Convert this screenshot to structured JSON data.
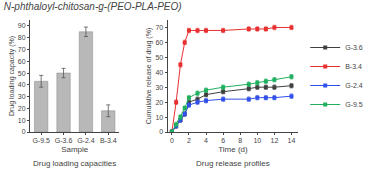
{
  "title": "N-phthaloyl-chitosan-g-(PEO-PLA-PEO)",
  "chart_data": [
    {
      "type": "bar",
      "title": "Drug loading capacities",
      "xlabel": "Sample",
      "ylabel": "Drug loading capacity (%)",
      "categories": [
        "G-9.5",
        "G-3.6",
        "G-2.4",
        "B-3.4"
      ],
      "values": [
        43,
        50,
        85,
        18
      ],
      "errors": [
        5,
        4,
        4,
        5
      ],
      "color": "#b8b8b8",
      "ylim": [
        0,
        95
      ],
      "yticks": [
        0,
        10,
        20,
        30,
        40,
        50,
        60,
        70,
        80,
        90
      ],
      "grid": false
    },
    {
      "type": "line",
      "title": "Drug release profiles",
      "xlabel": "Time (d)",
      "ylabel": "Cumulative release of drug (%)",
      "x": [
        0,
        0.5,
        1,
        1.5,
        2,
        3,
        4,
        6,
        9,
        10,
        11,
        12,
        14
      ],
      "series": [
        {
          "name": "G-3.6",
          "color": "#404040",
          "marker": "square",
          "values": [
            0,
            4,
            8,
            12,
            20,
            22,
            25,
            27,
            29,
            30,
            30,
            30,
            31
          ],
          "errors": [
            1.5,
            1.5,
            1.5,
            1.5,
            1.5,
            1.5,
            1.5,
            1.5,
            1.5,
            1.5,
            1.5,
            1.5,
            1.5
          ]
        },
        {
          "name": "B-3.4",
          "color": "#e83030",
          "marker": "square",
          "values": [
            0,
            20,
            45,
            60,
            68,
            68,
            68,
            68,
            69,
            69,
            69,
            70,
            70
          ],
          "errors": [
            1.5,
            1.5,
            1.5,
            1.5,
            1.5,
            1.5,
            1.5,
            1.5,
            1.5,
            1.5,
            1.5,
            1.5,
            1.5
          ]
        },
        {
          "name": "G-2.4",
          "color": "#3050e8",
          "marker": "square",
          "values": [
            0,
            4,
            8,
            12,
            18,
            20,
            21,
            22,
            22,
            23,
            23,
            23,
            24
          ],
          "errors": [
            1.5,
            1.5,
            1.5,
            1.5,
            1.5,
            1.5,
            1.5,
            1.5,
            1.5,
            1.5,
            1.5,
            1.5,
            1.5
          ]
        },
        {
          "name": "G-9.5",
          "color": "#20b060",
          "marker": "square",
          "values": [
            0,
            5,
            10,
            16,
            23,
            26,
            28,
            30,
            32,
            33,
            34,
            35,
            37
          ],
          "errors": [
            1.5,
            1.5,
            1.5,
            1.5,
            1.5,
            1.5,
            1.5,
            1.5,
            1.5,
            1.5,
            1.5,
            1.5,
            1.5
          ]
        }
      ],
      "xlim": [
        -0.5,
        14.8
      ],
      "xticks": [
        0,
        2,
        4,
        6,
        8,
        10,
        12,
        14
      ],
      "ylim": [
        0,
        75
      ],
      "yticks": [
        0,
        10,
        20,
        30,
        40,
        50,
        60,
        70
      ],
      "grid": false,
      "legend": "right"
    }
  ]
}
